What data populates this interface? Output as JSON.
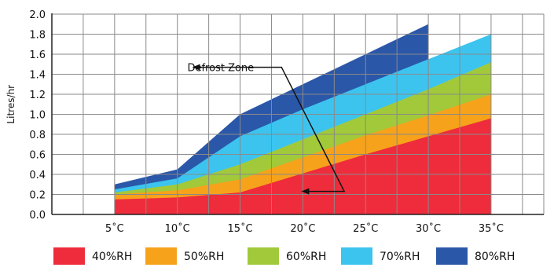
{
  "chart_data": {
    "type": "area",
    "ylabel": "Litres/hr",
    "xlabel": "",
    "x_ticks": [
      "5˚C",
      "10˚C",
      "15˚C",
      "20˚C",
      "25˚C",
      "30˚C",
      "35˚C"
    ],
    "y_ticks": [
      "0.0",
      "0.2",
      "0.4",
      "0.6",
      "0.8",
      "1.0",
      "1.2",
      "1.4",
      "1.6",
      "1.8",
      "2.0"
    ],
    "xlim": [
      0,
      39.2
    ],
    "ylim": [
      0,
      2.0
    ],
    "grid": true,
    "legend_position": "bottom",
    "stacked": false,
    "annotation": "Defrost Zone",
    "series": [
      {
        "name": "80%RH",
        "color": "#2b57a8",
        "x": [
          5,
          10,
          15,
          20,
          25,
          30
        ],
        "values": [
          0.3,
          0.45,
          1.0,
          1.3,
          1.6,
          1.9
        ]
      },
      {
        "name": "70%RH",
        "color": "#3cc4ef",
        "x": [
          5,
          10,
          15,
          20,
          25,
          30,
          35
        ],
        "values": [
          0.25,
          0.36,
          0.78,
          1.05,
          1.3,
          1.55,
          1.8
        ]
      },
      {
        "name": "60%RH",
        "color": "#a1c93a",
        "x": [
          5,
          10,
          15,
          20,
          25,
          30,
          35
        ],
        "values": [
          0.22,
          0.3,
          0.5,
          0.75,
          1.0,
          1.25,
          1.52
        ]
      },
      {
        "name": "50%RH",
        "color": "#f7a21b",
        "x": [
          5,
          10,
          15,
          20,
          25,
          30,
          35
        ],
        "values": [
          0.2,
          0.24,
          0.35,
          0.57,
          0.79,
          0.99,
          1.2
        ]
      },
      {
        "name": "40%RH",
        "color": "#ee2c3c",
        "x": [
          5,
          10,
          15,
          20,
          25,
          30,
          35
        ],
        "values": [
          0.15,
          0.17,
          0.22,
          0.41,
          0.6,
          0.78,
          0.96
        ]
      }
    ]
  }
}
